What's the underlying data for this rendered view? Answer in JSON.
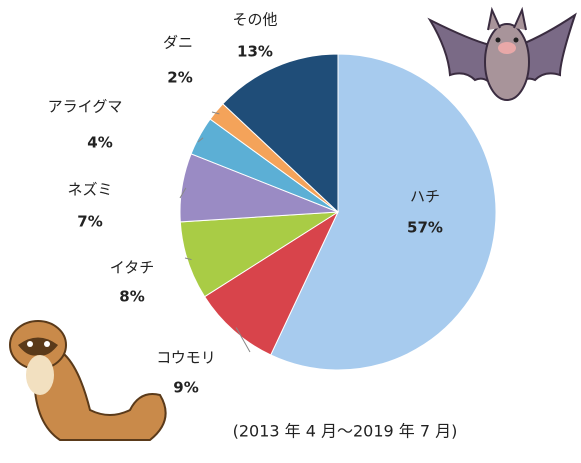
{
  "chart_data": {
    "type": "pie",
    "subtitle": "(2013 年 4 月～2019 年 7 月)",
    "categories": [
      "ハチ",
      "コウモリ",
      "イタチ",
      "ネズミ",
      "アライグマ",
      "ダニ",
      "その他"
    ],
    "values": [
      57,
      9,
      8,
      7,
      4,
      2,
      13
    ],
    "value_labels": [
      "57%",
      "9%",
      "8%",
      "7%",
      "4%",
      "2%",
      "13%"
    ],
    "colors": [
      "#a7cbee",
      "#d8444b",
      "#a9cc45",
      "#9a8bc4",
      "#5cafd5",
      "#f4a35a",
      "#1f4d78"
    ]
  }
}
